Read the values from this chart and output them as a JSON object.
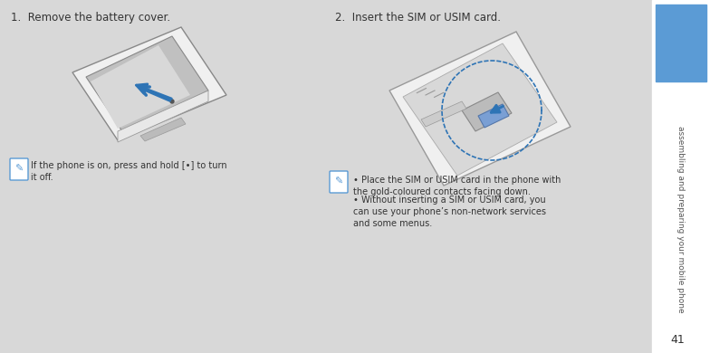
{
  "bg_color": "#d8d8d8",
  "sidebar_color": "#5b9bd5",
  "sidebar_bg": "#ffffff",
  "text_color": "#333333",
  "title1": "1.  Remove the battery cover.",
  "title2": "2.  Insert the SIM or USIM card.",
  "note1_text": "If the phone is on, press and hold [•] to turn\nit off.",
  "bullet1": "Place the SIM or USIM card in the phone with\nthe gold-coloured contacts facing down.",
  "bullet2": "Without inserting a SIM or USIM card, you\ncan use your phone’s non-network services\nand some menus.",
  "sidebar_text": "assembling and preparing your mobile phone",
  "page_num": "41",
  "arrow_color": "#2E74B5",
  "dotted_circle_color": "#2E74B5",
  "note_icon_color": "#5b9bd5"
}
